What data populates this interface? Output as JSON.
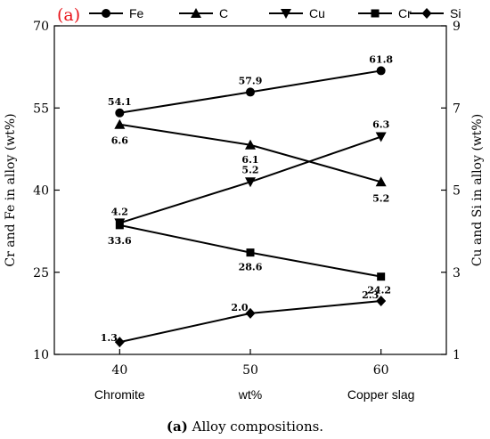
{
  "panel_tag": "(a)",
  "caption": {
    "bold": "(a)",
    "rest": " Alloy compositions."
  },
  "chart_data": {
    "type": "line",
    "title": "",
    "x": [
      40,
      50,
      60
    ],
    "xlabel": "wt%",
    "xlabel_left": "Chromite",
    "xlabel_right": "Copper slag",
    "x_ticks": [
      "40",
      "50",
      "60"
    ],
    "xlim": [
      35,
      65
    ],
    "ylabel": "Cr and Fe in alloy (wt%)",
    "ylim": [
      10,
      70
    ],
    "y_ticks": [
      "10",
      "25",
      "40",
      "55",
      "70"
    ],
    "y2label": "Cu and Si in alloy (wt%)",
    "y2lim": [
      1,
      9
    ],
    "y2_ticks": [
      "1",
      "3",
      "5",
      "7",
      "9"
    ],
    "grid": false,
    "legend_position": "top",
    "series": [
      {
        "name": "Fe",
        "axis": "left",
        "marker": "circle",
        "values": [
          54.1,
          57.9,
          61.8
        ],
        "labels": [
          "54.1",
          "57.9",
          "61.8"
        ]
      },
      {
        "name": "C",
        "axis": "right",
        "marker": "triangle-up",
        "values": [
          6.6,
          6.1,
          5.2
        ],
        "labels": [
          "6.6",
          "6.1",
          "5.2"
        ]
      },
      {
        "name": "Cu",
        "axis": "right",
        "marker": "triangle-down",
        "values": [
          4.2,
          5.2,
          6.3
        ],
        "labels": [
          "4.2",
          "5.2",
          "6.3"
        ]
      },
      {
        "name": "Cr",
        "axis": "left",
        "marker": "square",
        "values": [
          33.6,
          28.6,
          24.2
        ],
        "labels": [
          "33.6",
          "28.6",
          "24.2"
        ]
      },
      {
        "name": "Si",
        "axis": "right",
        "marker": "diamond",
        "values": [
          1.3,
          2.0,
          2.3
        ],
        "labels": [
          "1.3",
          "2.0",
          "2.3"
        ]
      }
    ]
  }
}
